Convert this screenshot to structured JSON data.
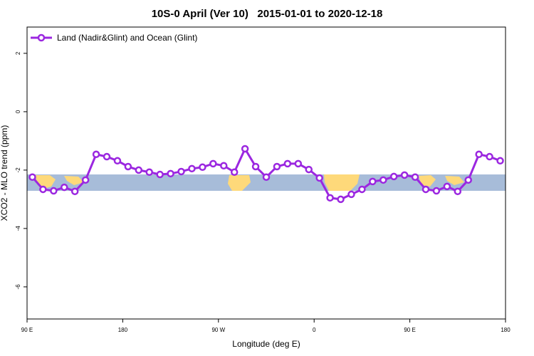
{
  "chart_data": {
    "type": "line",
    "title": "10S-0 April (Ver 10)   2015-01-01 to 2020-12-18",
    "x_label": "Longitude (deg E)",
    "y_label": "XCO2 - MLO trend (ppm)",
    "x": [
      95,
      105,
      115,
      125,
      135,
      145,
      155,
      165,
      175,
      185,
      195,
      205,
      215,
      225,
      235,
      245,
      255,
      265,
      275,
      285,
      295,
      305,
      315,
      325,
      335,
      345,
      355,
      365,
      375,
      385,
      395,
      405,
      415,
      425,
      435,
      445,
      455,
      465,
      475,
      485,
      495,
      505,
      515,
      525,
      535
    ],
    "series": [
      {
        "name": "Land (Nadir&Glint) and Ocean (Glint)",
        "color": "#9b27e0",
        "values": [
          -2.24,
          -2.66,
          -2.71,
          -2.59,
          -2.73,
          -2.34,
          -1.46,
          -1.54,
          -1.68,
          -1.88,
          -2.0,
          -2.07,
          -2.15,
          -2.12,
          -2.05,
          -1.95,
          -1.9,
          -1.78,
          -1.85,
          -2.07,
          -1.27,
          -1.88,
          -2.24,
          -1.88,
          -1.78,
          -1.78,
          -1.98,
          -2.27,
          -2.95,
          -3.0,
          -2.83,
          -2.66,
          -2.39,
          -2.34,
          -2.22,
          -2.17,
          -2.24,
          -2.66,
          -2.71,
          -2.56,
          -2.73,
          -2.34,
          -1.46,
          -1.54,
          -1.68
        ]
      }
    ],
    "xlim": [
      90,
      540
    ],
    "xticks": [
      {
        "value": 90,
        "label": "90 E"
      },
      180,
      {
        "value": 270,
        "label": "90 W"
      },
      {
        "value": 360,
        "label": "0"
      },
      {
        "value": 450,
        "label": "90 E"
      },
      {
        "value": 540,
        "label": "180"
      }
    ],
    "ylim": [
      -7.1,
      2.9
    ],
    "yticks": [
      -6,
      -4,
      -2,
      0,
      2
    ],
    "legend": "top-left"
  }
}
